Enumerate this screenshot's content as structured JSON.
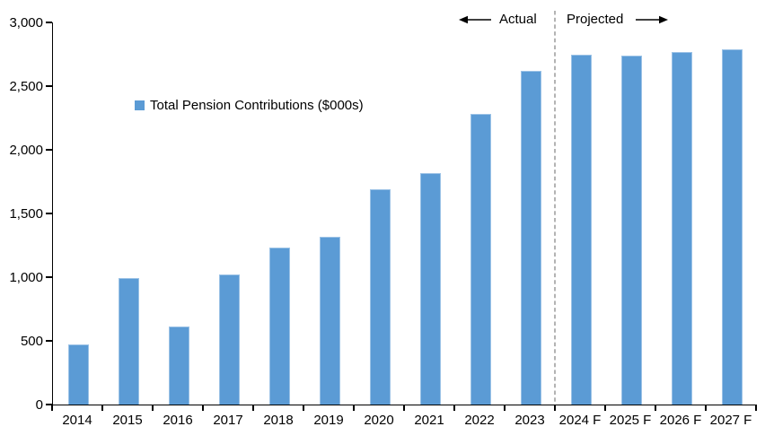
{
  "chart_data": {
    "type": "bar",
    "title": "",
    "legend_entries": [
      "Total Pension Contributions ($000s)"
    ],
    "categories": [
      "2014",
      "2015",
      "2016",
      "2017",
      "2018",
      "2019",
      "2020",
      "2021",
      "2022",
      "2023",
      "2024 F",
      "2025 F",
      "2026 F",
      "2027 F"
    ],
    "values": [
      470,
      990,
      610,
      1020,
      1230,
      1320,
      1690,
      1820,
      2280,
      2620,
      2750,
      2740,
      2770,
      2790
    ],
    "xlabel": "",
    "ylabel": "",
    "ylim": [
      0,
      3000
    ],
    "ytick_step": 500,
    "ytick_labels": [
      "0",
      "500",
      "1,000",
      "1,500",
      "2,000",
      "2,500",
      "3,000"
    ],
    "grid": false,
    "legend_position": "upper-left-inside",
    "annotations": {
      "actual_label": "Actual",
      "projected_label": "Projected",
      "divider_between": [
        "2023",
        "2024 F"
      ]
    },
    "bar_color": "#5B9BD5",
    "bar_edge_color": "#9bc2e6",
    "divider_color": "#A6A6A6",
    "axis_color": "#000000"
  },
  "legend": {
    "label": "Total Pension Contributions ($000s)",
    "swatch_color": "#5B9BD5"
  },
  "annotations": {
    "actual": "Actual",
    "projected": "Projected"
  }
}
